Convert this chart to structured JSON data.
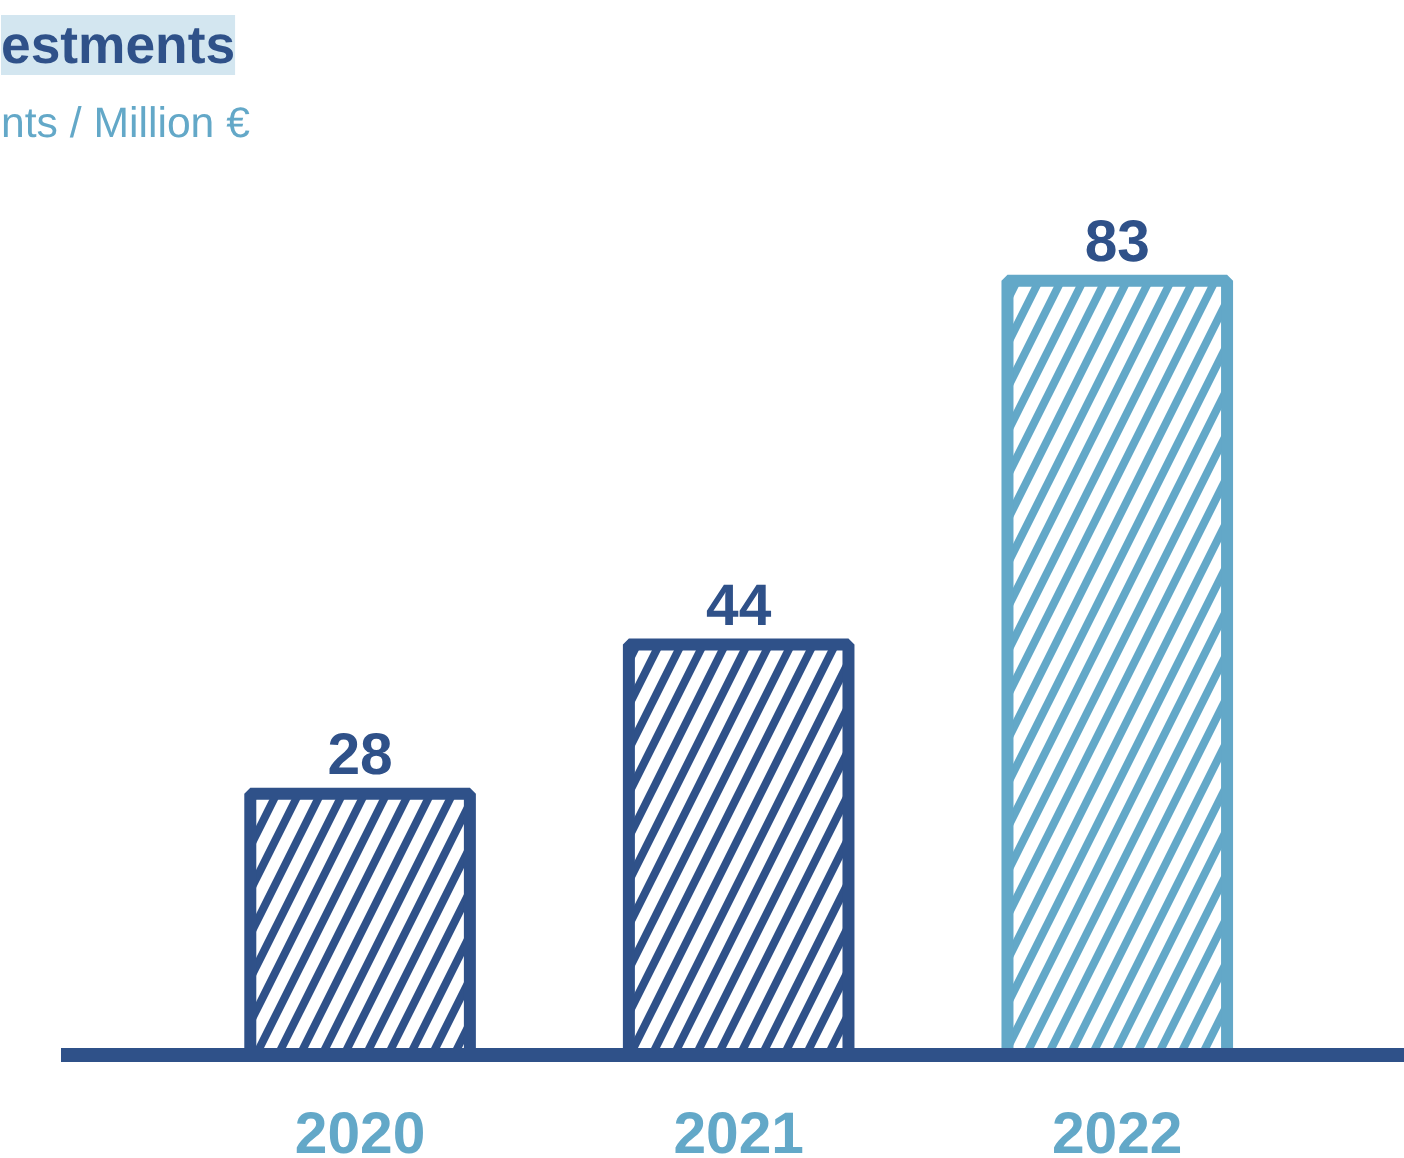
{
  "chart_data": {
    "type": "bar",
    "title": "estments",
    "subtitle": "nts / Million €",
    "categories": [
      "2020",
      "2021",
      "2022"
    ],
    "values": [
      28,
      44,
      83
    ],
    "colors": [
      "#2f5189",
      "#2f5189",
      "#63a8c8"
    ],
    "data_labels": true,
    "grid": false,
    "tick_labels": "x"
  }
}
